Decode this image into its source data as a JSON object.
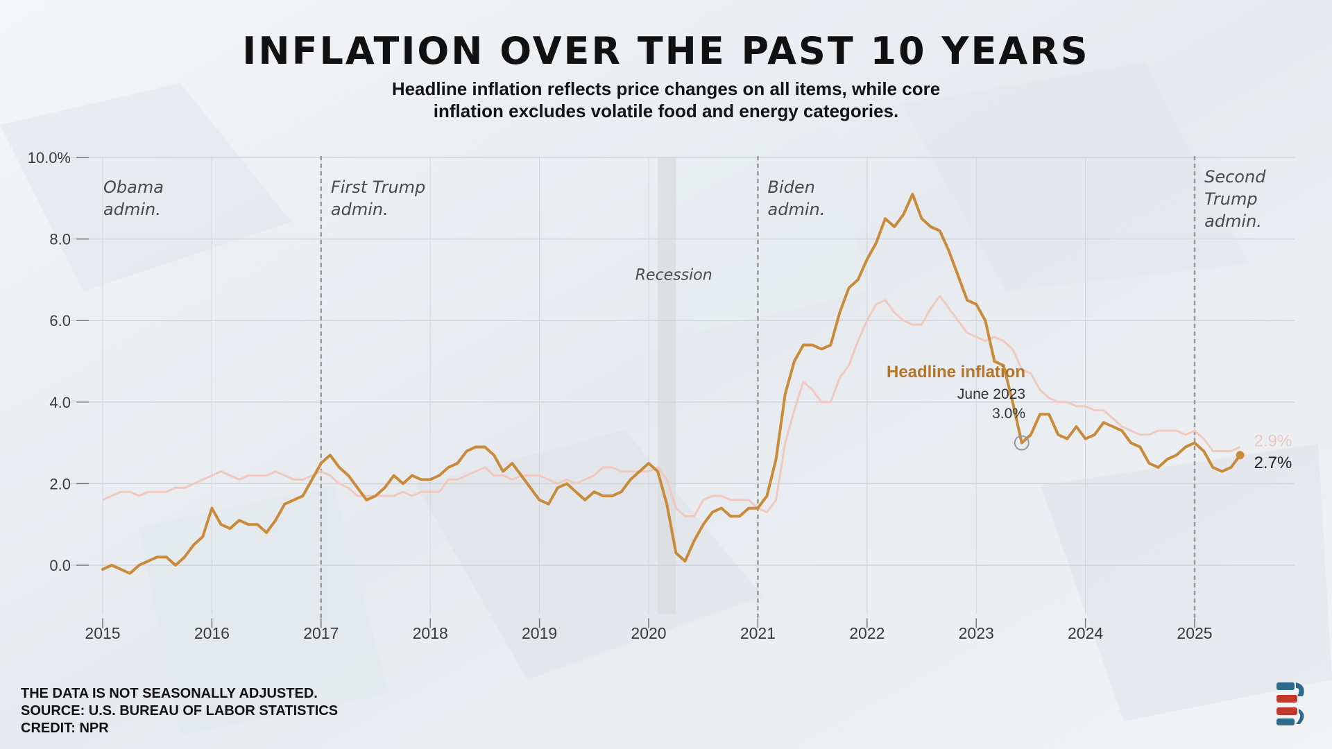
{
  "header": {
    "title": "INFLATION OVER THE PAST 10 YEARS",
    "subtitle_line1": "Headline inflation reflects price changes on all items, while core",
    "subtitle_line2": "inflation excludes volatile food and energy categories."
  },
  "footer": {
    "line1": "THE DATA IS NOT SEASONALLY ADJUSTED.",
    "line2": "SOURCE: U.S. BUREAU OF LABOR STATISTICS",
    "line3": "CREDIT: NPR"
  },
  "colors": {
    "headline": "#c98a3a",
    "core": "#f0c9bf",
    "headline_label": "#b4752a",
    "grid": "#cfd4da",
    "axis_text": "#3a3a3a",
    "annotation_text": "#4a4a4a",
    "recession_band": "#d9dcdf",
    "divider": "#9a9a9a"
  },
  "icons": {
    "logo": "be-logo"
  },
  "chart_data": {
    "type": "line",
    "x_start": "2015-01",
    "frequency": "monthly",
    "x_ticks": [
      "2015",
      "2016",
      "2017",
      "2018",
      "2019",
      "2020",
      "2021",
      "2022",
      "2023",
      "2024",
      "2025"
    ],
    "y_ticks": [
      "10.0%",
      "8.0",
      "6.0",
      "4.0",
      "2.0",
      "0.0"
    ],
    "y_tick_values": [
      10,
      8,
      6,
      4,
      2,
      0
    ],
    "ylim": [
      -1.2,
      10.0
    ],
    "xlim": [
      "2014-11",
      "2025-12"
    ],
    "grid": true,
    "series": [
      {
        "name": "Headline inflation",
        "role": "headline",
        "values": [
          -0.1,
          0.0,
          -0.1,
          -0.2,
          0.0,
          0.1,
          0.2,
          0.2,
          0.0,
          0.2,
          0.5,
          0.7,
          1.4,
          1.0,
          0.9,
          1.1,
          1.0,
          1.0,
          0.8,
          1.1,
          1.5,
          1.6,
          1.7,
          2.1,
          2.5,
          2.7,
          2.4,
          2.2,
          1.9,
          1.6,
          1.7,
          1.9,
          2.2,
          2.0,
          2.2,
          2.1,
          2.1,
          2.2,
          2.4,
          2.5,
          2.8,
          2.9,
          2.9,
          2.7,
          2.3,
          2.5,
          2.2,
          1.9,
          1.6,
          1.5,
          1.9,
          2.0,
          1.8,
          1.6,
          1.8,
          1.7,
          1.7,
          1.8,
          2.1,
          2.3,
          2.5,
          2.3,
          1.5,
          0.3,
          0.1,
          0.6,
          1.0,
          1.3,
          1.4,
          1.2,
          1.2,
          1.4,
          1.4,
          1.7,
          2.6,
          4.2,
          5.0,
          5.4,
          5.4,
          5.3,
          5.4,
          6.2,
          6.8,
          7.0,
          7.5,
          7.9,
          8.5,
          8.3,
          8.6,
          9.1,
          8.5,
          8.3,
          8.2,
          7.7,
          7.1,
          6.5,
          6.4,
          6.0,
          5.0,
          4.9,
          4.0,
          3.0,
          3.2,
          3.7,
          3.7,
          3.2,
          3.1,
          3.4,
          3.1,
          3.2,
          3.5,
          3.4,
          3.3,
          3.0,
          2.9,
          2.5,
          2.4,
          2.6,
          2.7,
          2.9,
          3.0,
          2.8,
          2.4,
          2.3,
          2.4,
          2.7
        ]
      },
      {
        "name": "",
        "role": "core",
        "values": [
          1.6,
          1.7,
          1.8,
          1.8,
          1.7,
          1.8,
          1.8,
          1.8,
          1.9,
          1.9,
          2.0,
          2.1,
          2.2,
          2.3,
          2.2,
          2.1,
          2.2,
          2.2,
          2.2,
          2.3,
          2.2,
          2.1,
          2.1,
          2.2,
          2.3,
          2.2,
          2.0,
          1.9,
          1.7,
          1.7,
          1.7,
          1.7,
          1.7,
          1.8,
          1.7,
          1.8,
          1.8,
          1.8,
          2.1,
          2.1,
          2.2,
          2.3,
          2.4,
          2.2,
          2.2,
          2.1,
          2.2,
          2.2,
          2.2,
          2.1,
          2.0,
          2.1,
          2.0,
          2.1,
          2.2,
          2.4,
          2.4,
          2.3,
          2.3,
          2.3,
          2.3,
          2.4,
          2.1,
          1.4,
          1.2,
          1.2,
          1.6,
          1.7,
          1.7,
          1.6,
          1.6,
          1.6,
          1.4,
          1.3,
          1.6,
          3.0,
          3.8,
          4.5,
          4.3,
          4.0,
          4.0,
          4.6,
          4.9,
          5.5,
          6.0,
          6.4,
          6.5,
          6.2,
          6.0,
          5.9,
          5.9,
          6.3,
          6.6,
          6.3,
          6.0,
          5.7,
          5.6,
          5.5,
          5.6,
          5.5,
          5.3,
          4.8,
          4.7,
          4.3,
          4.1,
          4.0,
          4.0,
          3.9,
          3.9,
          3.8,
          3.8,
          3.6,
          3.4,
          3.3,
          3.2,
          3.2,
          3.3,
          3.3,
          3.3,
          3.2,
          3.3,
          3.1,
          2.8,
          2.8,
          2.8,
          2.9
        ]
      }
    ],
    "end_labels": {
      "headline": "2.7%",
      "core": "2.9%"
    },
    "recession": {
      "label": "Recession",
      "start": "2020-02",
      "end": "2020-04"
    },
    "dividers": [
      {
        "date": "2017-01",
        "label_lines": []
      },
      {
        "date": "2021-01",
        "label_lines": []
      },
      {
        "date": "2025-01",
        "label_lines": []
      }
    ],
    "admin_labels": [
      {
        "lines": [
          "Obama",
          "admin."
        ],
        "anchor": "2015-01"
      },
      {
        "lines": [
          "First Trump",
          "admin."
        ],
        "anchor": "2017-02"
      },
      {
        "lines": [
          "Biden",
          "admin."
        ],
        "anchor": "2021-02"
      },
      {
        "lines": [
          "Second",
          "Trump",
          "admin."
        ],
        "anchor": "2025-02"
      }
    ],
    "callout": {
      "series_label": "Headline inflation",
      "date_label": "June 2023",
      "value_label": "3.0%",
      "date": "2023-06",
      "value": 3.0
    }
  }
}
